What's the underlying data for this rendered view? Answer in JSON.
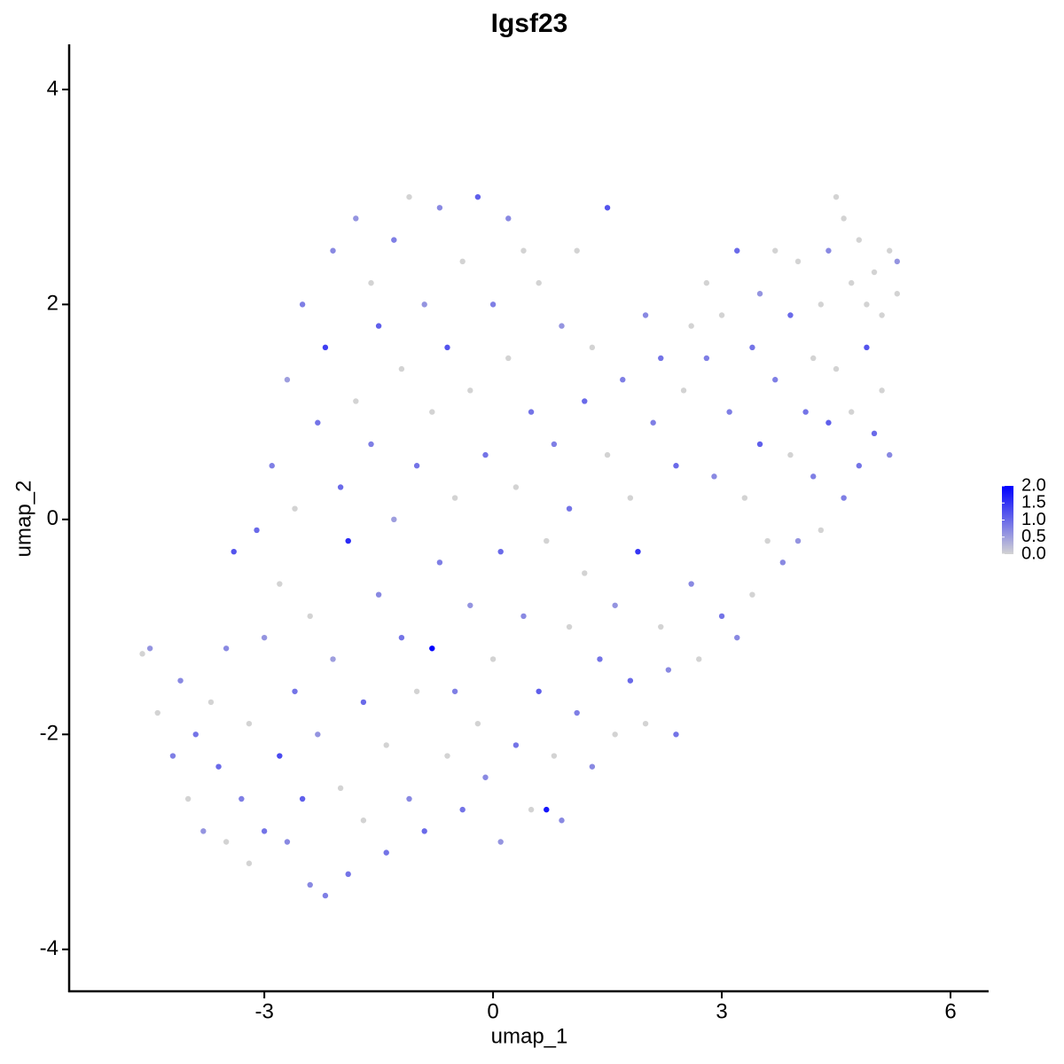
{
  "chart_data": {
    "type": "scatter",
    "title": "Igsf23",
    "xlabel": "umap_1",
    "ylabel": "umap_2",
    "x": [
      -4.6,
      -4.5,
      -4.4,
      -4.2,
      -4.1,
      -4.0,
      -3.9,
      -3.8,
      -3.7,
      -3.6,
      -3.5,
      -3.5,
      -3.4,
      -3.3,
      -3.2,
      -3.2,
      -3.1,
      -3.0,
      -3.0,
      -2.9,
      -2.8,
      -2.8,
      -2.7,
      -2.7,
      -2.6,
      -2.6,
      -2.5,
      -2.5,
      -2.4,
      -2.4,
      -2.3,
      -2.3,
      -2.2,
      -2.2,
      -2.1,
      -2.1,
      -2.0,
      -2.0,
      -1.9,
      -1.9,
      -1.8,
      -1.8,
      -1.7,
      -1.7,
      -1.6,
      -1.6,
      -1.5,
      -1.5,
      -1.4,
      -1.4,
      -1.3,
      -1.3,
      -1.2,
      -1.2,
      -1.1,
      -1.1,
      -1.0,
      -1.0,
      -0.9,
      -0.9,
      -0.8,
      -0.8,
      -0.7,
      -0.7,
      -0.6,
      -0.6,
      -0.5,
      -0.5,
      -0.4,
      -0.4,
      -0.3,
      -0.3,
      -0.2,
      -0.2,
      -0.1,
      -0.1,
      0.0,
      0.0,
      0.1,
      0.1,
      0.2,
      0.2,
      0.3,
      0.3,
      0.4,
      0.4,
      0.5,
      0.5,
      0.6,
      0.6,
      0.7,
      0.7,
      0.8,
      0.8,
      0.9,
      0.9,
      1.0,
      1.0,
      1.1,
      1.1,
      1.2,
      1.2,
      1.3,
      1.3,
      1.4,
      1.5,
      1.5,
      1.6,
      1.6,
      1.7,
      1.8,
      1.8,
      1.9,
      2.0,
      2.0,
      2.1,
      2.2,
      2.2,
      2.3,
      2.4,
      2.4,
      2.5,
      2.6,
      2.6,
      2.7,
      2.8,
      2.8,
      2.9,
      3.0,
      3.0,
      3.1,
      3.2,
      3.2,
      3.3,
      3.4,
      3.4,
      3.5,
      3.5,
      3.6,
      3.7,
      3.7,
      3.8,
      3.9,
      3.9,
      4.0,
      4.0,
      4.1,
      4.2,
      4.2,
      4.3,
      4.3,
      4.4,
      4.4,
      4.5,
      4.5,
      4.6,
      4.6,
      4.7,
      4.7,
      4.8,
      4.8,
      4.9,
      4.9,
      5.0,
      5.0,
      5.1,
      5.1,
      5.2,
      5.2,
      5.3,
      5.3
    ],
    "y": [
      -1.25,
      -1.2,
      -1.8,
      -2.2,
      -1.5,
      -2.6,
      -2.0,
      -2.9,
      -1.7,
      -2.3,
      -1.2,
      -3.0,
      -0.3,
      -2.6,
      -1.9,
      -3.2,
      -0.1,
      -2.9,
      -1.1,
      0.5,
      -2.2,
      -0.6,
      -3.0,
      1.3,
      -1.6,
      0.1,
      -2.6,
      2.0,
      -3.4,
      -0.9,
      0.9,
      -2.0,
      1.6,
      -3.5,
      -1.3,
      2.5,
      -2.5,
      0.3,
      -0.2,
      -3.3,
      1.1,
      2.8,
      -1.7,
      -2.8,
      0.7,
      2.2,
      -0.7,
      1.8,
      -3.1,
      -2.1,
      0.0,
      2.6,
      -1.1,
      1.4,
      -2.6,
      3.0,
      0.5,
      -1.6,
      2.0,
      -2.9,
      -1.2,
      1.0,
      -0.4,
      2.9,
      -2.2,
      1.6,
      0.2,
      -1.6,
      2.4,
      -2.7,
      -0.8,
      1.2,
      3.0,
      -1.9,
      0.6,
      -2.4,
      -1.3,
      2.0,
      -3.0,
      -0.3,
      1.5,
      2.8,
      -2.1,
      0.3,
      -0.9,
      2.5,
      -2.7,
      1.0,
      -1.6,
      2.2,
      -2.7,
      -0.2,
      0.7,
      -2.2,
      1.8,
      -2.8,
      -1.0,
      0.1,
      2.5,
      -1.8,
      1.1,
      -0.5,
      -2.3,
      1.6,
      -1.3,
      0.6,
      2.9,
      -0.8,
      -2.0,
      1.3,
      -1.5,
      0.2,
      -0.3,
      1.9,
      -1.9,
      0.9,
      -1.0,
      1.5,
      -1.4,
      0.5,
      -2.0,
      1.2,
      -0.6,
      1.8,
      -1.3,
      1.5,
      2.2,
      0.4,
      -0.9,
      1.9,
      1.0,
      -1.1,
      2.5,
      0.2,
      1.6,
      -0.7,
      2.1,
      0.7,
      -0.2,
      2.5,
      1.3,
      -0.4,
      0.6,
      1.9,
      2.4,
      -0.2,
      1.0,
      1.5,
      0.4,
      2.0,
      -0.1,
      2.5,
      0.9,
      3.0,
      1.4,
      2.8,
      0.2,
      2.2,
      1.0,
      2.6,
      0.5,
      1.6,
      2.0,
      2.3,
      0.8,
      1.2,
      1.9,
      2.5,
      0.6,
      2.1,
      2.4
    ],
    "values": [
      0,
      0.6,
      0,
      0.8,
      0.7,
      0,
      0.9,
      0.6,
      0,
      1.0,
      0.7,
      0,
      1.2,
      0.8,
      0,
      0,
      1.0,
      0.9,
      0.6,
      0.8,
      1.3,
      0,
      0.7,
      0.5,
      0.9,
      0,
      1.1,
      0.8,
      0.7,
      0,
      0.9,
      0.6,
      1.4,
      0.8,
      0.5,
      0.7,
      0,
      1.0,
      1.6,
      0.9,
      0,
      0.6,
      1.0,
      0,
      0.8,
      0,
      0.7,
      1.1,
      0.9,
      0,
      0.5,
      0.8,
      0.9,
      0,
      0.7,
      0,
      0.9,
      0,
      0.6,
      1.0,
      2.0,
      0,
      0.8,
      0.7,
      0,
      1.2,
      0,
      0.8,
      0,
      0.9,
      0.6,
      0,
      1.1,
      0,
      0.9,
      0.7,
      0,
      0.8,
      0.6,
      1.0,
      0,
      0.7,
      0.9,
      0,
      0.7,
      0,
      0,
      0.9,
      1.1,
      0,
      1.8,
      0,
      0.8,
      0,
      0.6,
      0.7,
      0,
      0.9,
      0,
      0.8,
      1.0,
      0,
      0.7,
      0,
      0.9,
      0,
      1.2,
      0.6,
      0,
      0.8,
      1.0,
      0,
      1.5,
      0.7,
      0,
      0.8,
      0,
      0.9,
      0.7,
      1.0,
      0.9,
      0,
      0.7,
      0,
      0,
      0.8,
      0,
      0.7,
      0.9,
      0,
      0.8,
      0.7,
      1.0,
      0,
      0.9,
      0,
      0.6,
      1.1,
      0,
      0,
      0.8,
      0.7,
      0,
      1.0,
      0,
      0.6,
      0.9,
      0,
      0.8,
      0,
      0,
      0.7,
      1.1,
      0,
      0,
      0,
      0.8,
      0,
      0,
      0,
      0.9,
      1.2,
      0,
      0,
      1.0,
      0,
      0,
      0,
      0.7,
      0,
      0.6
    ],
    "xlim": [
      -5.56,
      6.5
    ],
    "ylim": [
      -4.39,
      4.42
    ],
    "xticks": [
      -3,
      0,
      3,
      6
    ],
    "yticks": [
      -4,
      -2,
      0,
      2,
      4
    ],
    "colorbar": {
      "lim": [
        0,
        2
      ],
      "colors": [
        "#d3d3d3",
        "#0000ff"
      ],
      "ticks": [
        {
          "value": 0,
          "label": "0.0"
        },
        0.5,
        {
          "value": 1,
          "label": "1.0"
        },
        1.5,
        {
          "value": 2,
          "label": "2.0"
        }
      ]
    }
  }
}
